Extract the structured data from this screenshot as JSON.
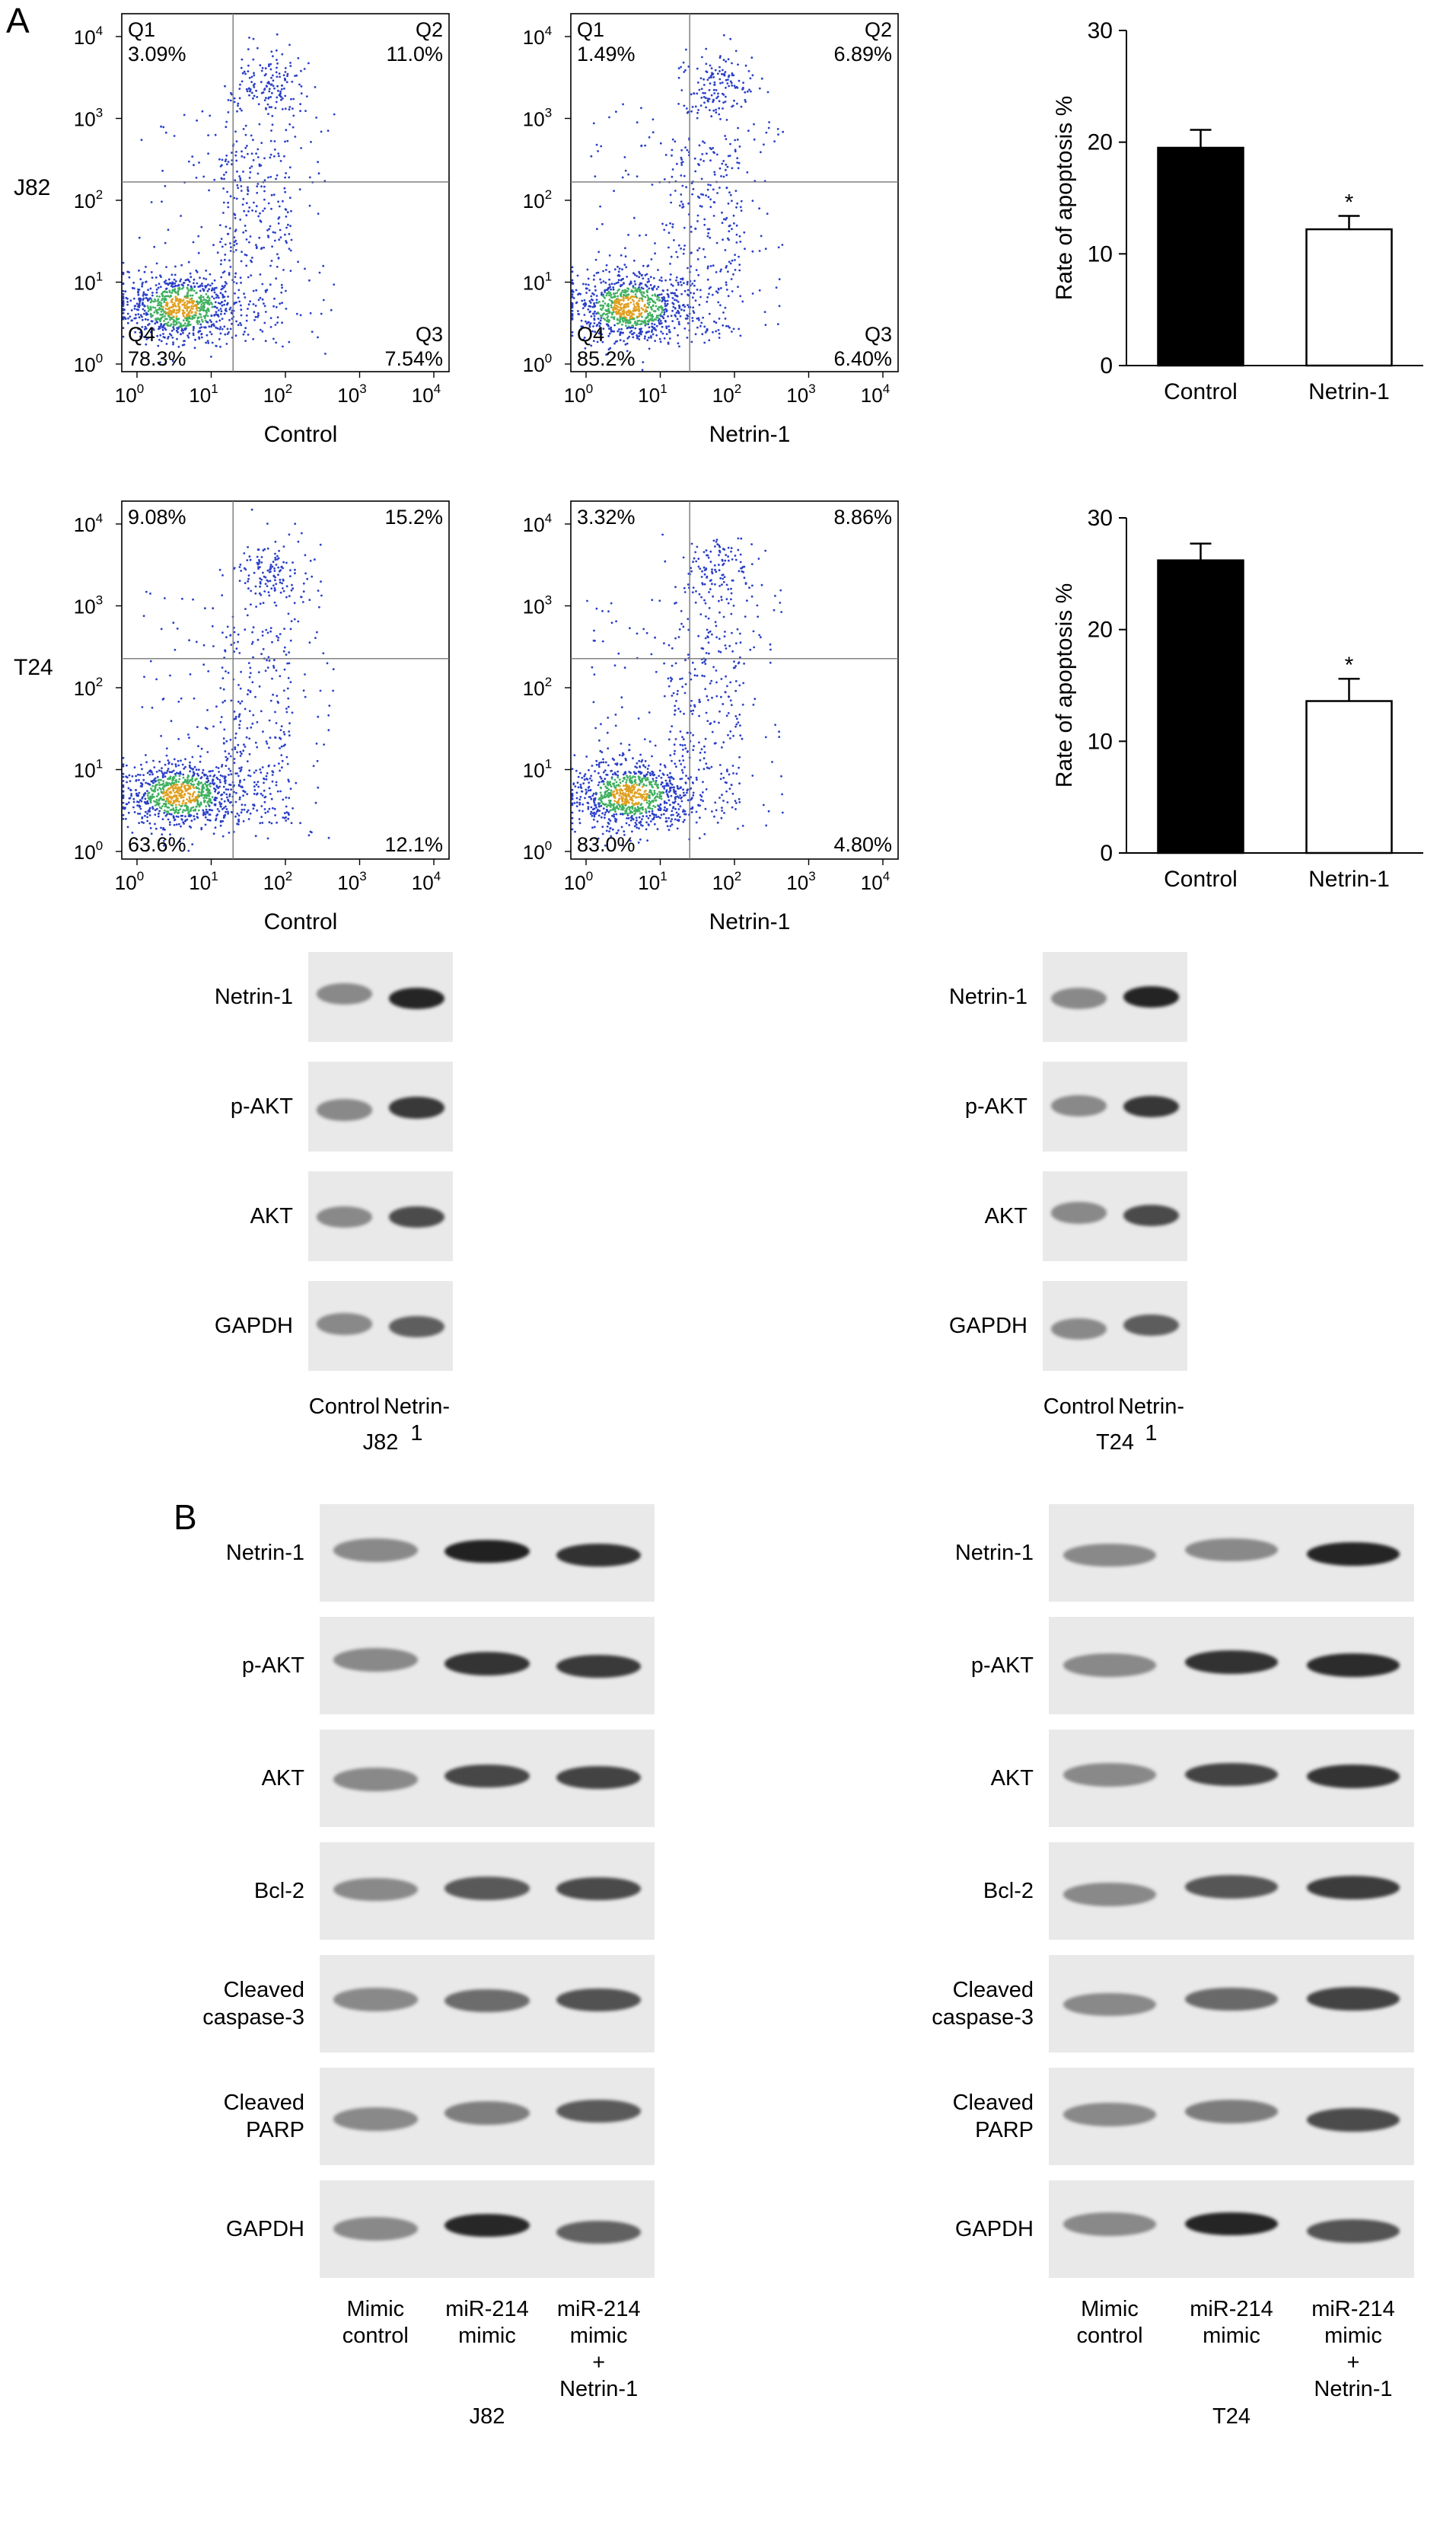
{
  "panel_a": {
    "letter": "A",
    "flow_rows": [
      {
        "cell_line": "J82",
        "plots": [
          {
            "xlabel": "Control",
            "q1_name": "Q1",
            "q1": "3.09%",
            "q2_name": "Q2",
            "q2": "11.0%",
            "q3_name": "Q3",
            "q3": "7.54%",
            "q4_name": "Q4",
            "q4": "78.3%"
          },
          {
            "xlabel": "Netrin-1",
            "q1_name": "Q1",
            "q1": "1.49%",
            "q2_name": "Q2",
            "q2": "6.89%",
            "q3_name": "Q3",
            "q3": "6.40%",
            "q4_name": "Q4",
            "q4": "85.2%"
          }
        ]
      },
      {
        "cell_line": "T24",
        "plots": [
          {
            "xlabel": "Control",
            "q1_name": "",
            "q1": "9.08%",
            "q2_name": "",
            "q2": "15.2%",
            "q3_name": "",
            "q3": "12.1%",
            "q4_name": "",
            "q4": "63.6%"
          },
          {
            "xlabel": "Netrin-1",
            "q1_name": "",
            "q1": "3.32%",
            "q2_name": "",
            "q2": "8.86%",
            "q3_name": "",
            "q3": "4.80%",
            "q4_name": "",
            "q4": "83.0%"
          }
        ]
      }
    ],
    "flow_axis_ticks": [
      "10^0",
      "10^1",
      "10^2",
      "10^3",
      "10^4"
    ],
    "wb_groups": [
      {
        "cell_line": "J82",
        "lanes": [
          "Control",
          "Netrin-1"
        ],
        "blots": [
          "Netrin-1",
          "p-AKT",
          "AKT",
          "GAPDH"
        ]
      },
      {
        "cell_line": "T24",
        "lanes": [
          "Control",
          "Netrin-1"
        ],
        "blots": [
          "Netrin-1",
          "p-AKT",
          "AKT",
          "GAPDH"
        ]
      }
    ]
  },
  "chart_data": [
    {
      "type": "bar",
      "categories": [
        "Control",
        "Netrin-1"
      ],
      "values": [
        19.5,
        12.2
      ],
      "errors": [
        1.6,
        1.2
      ],
      "colors": [
        "#000000",
        "#ffffff"
      ],
      "significance": [
        "",
        "*"
      ],
      "title": "",
      "xlabel": "",
      "ylabel": "Rate of apoptosis %",
      "ylim": [
        0,
        30
      ],
      "yticks": [
        0,
        10,
        20,
        30
      ]
    },
    {
      "type": "bar",
      "categories": [
        "Control",
        "Netrin-1"
      ],
      "values": [
        26.2,
        13.6
      ],
      "errors": [
        1.5,
        2.0
      ],
      "colors": [
        "#000000",
        "#ffffff"
      ],
      "significance": [
        "",
        "*"
      ],
      "title": "",
      "xlabel": "",
      "ylabel": "Rate of apoptosis %",
      "ylim": [
        0,
        30
      ],
      "yticks": [
        0,
        10,
        20,
        30
      ]
    }
  ],
  "panel_b": {
    "letter": "B",
    "wb_groups": [
      {
        "cell_line": "J82",
        "lanes": [
          [
            "Mimic",
            "control"
          ],
          [
            "miR-214",
            "mimic"
          ],
          [
            "miR-214",
            "mimic",
            "+",
            "Netrin-1"
          ]
        ],
        "blots": [
          [
            "Netrin-1"
          ],
          [
            "p-AKT"
          ],
          [
            "AKT"
          ],
          [
            "Bcl-2"
          ],
          [
            "Cleaved",
            "caspase-3"
          ],
          [
            "Cleaved",
            "PARP"
          ],
          [
            "GAPDH"
          ]
        ]
      },
      {
        "cell_line": "T24",
        "lanes": [
          [
            "Mimic",
            "control"
          ],
          [
            "miR-214",
            "mimic"
          ],
          [
            "miR-214",
            "mimic",
            "+",
            "Netrin-1"
          ]
        ],
        "blots": [
          [
            "Netrin-1"
          ],
          [
            "p-AKT"
          ],
          [
            "AKT"
          ],
          [
            "Bcl-2"
          ],
          [
            "Cleaved",
            "caspase-3"
          ],
          [
            "Cleaved",
            "PARP"
          ],
          [
            "GAPDH"
          ]
        ]
      }
    ]
  }
}
